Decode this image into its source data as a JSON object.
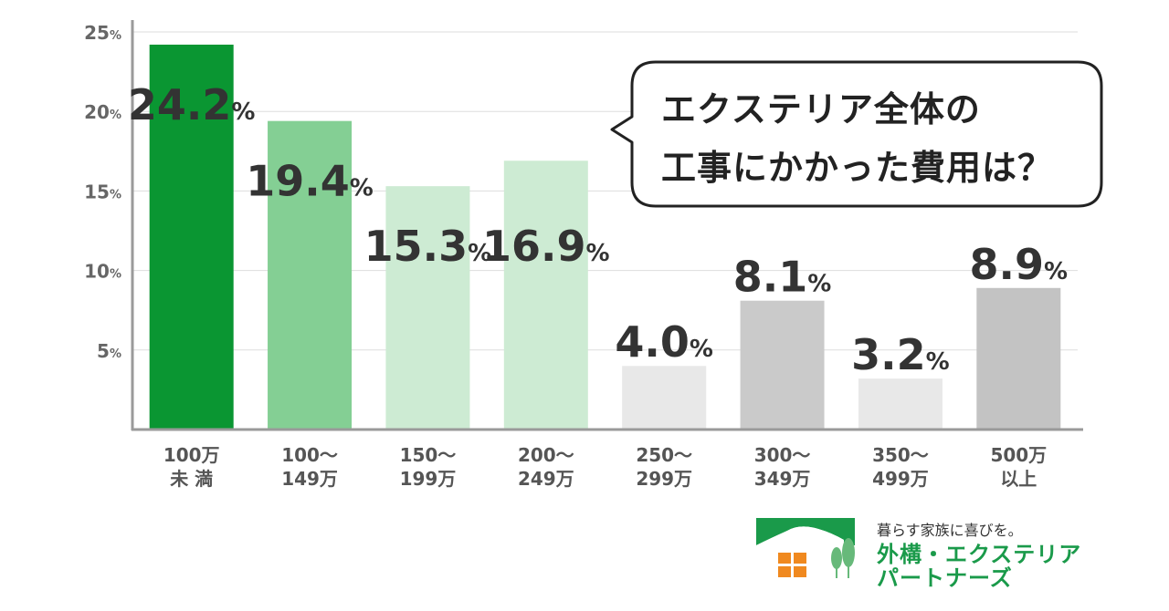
{
  "chart_data": {
    "type": "bar",
    "categories": [
      [
        "100万",
        "未 満"
      ],
      [
        "100～",
        "149万"
      ],
      [
        "150～",
        "199万"
      ],
      [
        "200～",
        "249万"
      ],
      [
        "250～",
        "299万"
      ],
      [
        "300～",
        "349万"
      ],
      [
        "350～",
        "499万"
      ],
      [
        "500万",
        "以上"
      ]
    ],
    "values": [
      24.2,
      19.4,
      15.3,
      16.9,
      4.0,
      8.1,
      3.2,
      8.9
    ],
    "value_labels": [
      "24.2",
      "19.4",
      "15.3",
      "16.9",
      "4.0",
      "8.1",
      "3.2",
      "8.9"
    ],
    "value_unit": "%",
    "colors": [
      "#0a9632",
      "#84cf94",
      "#cdebd3",
      "#cdebd3",
      "#e8e8e8",
      "#cacaca",
      "#e8e8e8",
      "#c3c3c3"
    ],
    "ylim": [
      0,
      25
    ],
    "yticks": [
      5,
      10,
      15,
      20,
      25
    ],
    "ytick_unit": "%",
    "grid": true,
    "title": "",
    "xlabel": "",
    "ylabel": ""
  },
  "callout": {
    "line1": "エクステリア全体の",
    "line2": "工事にかかった費用は？"
  },
  "logo": {
    "tagline": "暮らす家族に喜びを。",
    "brand_line1": "外構・エクステリア",
    "brand_line2": "パートナーズ",
    "brand_color": "#1a9a4a",
    "window_color": "#f0891f",
    "icon": "house-and-trees-icon"
  }
}
